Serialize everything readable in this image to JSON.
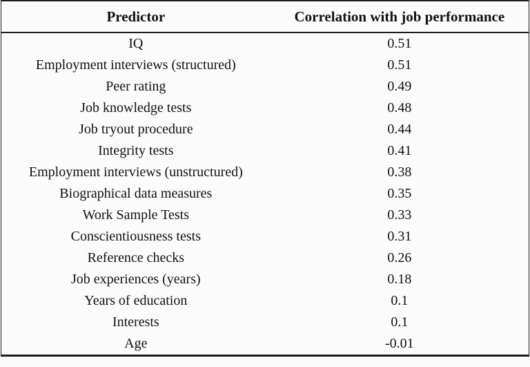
{
  "page": {
    "background_color": "#fbfbfb",
    "border_color": "#1c1c1c",
    "text_color": "#111111"
  },
  "table": {
    "columns": [
      {
        "label": "Predictor"
      },
      {
        "label": "Correlation with job performance"
      }
    ],
    "rows": [
      {
        "predictor": "IQ",
        "correlation": "0.51"
      },
      {
        "predictor": "Employment interviews (structured)",
        "correlation": "0.51"
      },
      {
        "predictor": "Peer rating",
        "correlation": "0.49"
      },
      {
        "predictor": "Job knowledge tests",
        "correlation": "0.48"
      },
      {
        "predictor": "Job tryout procedure",
        "correlation": "0.44"
      },
      {
        "predictor": "Integrity tests",
        "correlation": "0.41"
      },
      {
        "predictor": "Employment interviews (unstructured)",
        "correlation": "0.38"
      },
      {
        "predictor": "Biographical data measures",
        "correlation": "0.35"
      },
      {
        "predictor": "Work Sample Tests",
        "correlation": "0.33"
      },
      {
        "predictor": "Conscientiousness tests",
        "correlation": "0.31"
      },
      {
        "predictor": "Reference checks",
        "correlation": "0.26"
      },
      {
        "predictor": "Job experiences (years)",
        "correlation": "0.18"
      },
      {
        "predictor": "Years of education",
        "correlation": "0.1"
      },
      {
        "predictor": "Interests",
        "correlation": "0.1"
      },
      {
        "predictor": "Age",
        "correlation": "-0.01"
      }
    ]
  }
}
